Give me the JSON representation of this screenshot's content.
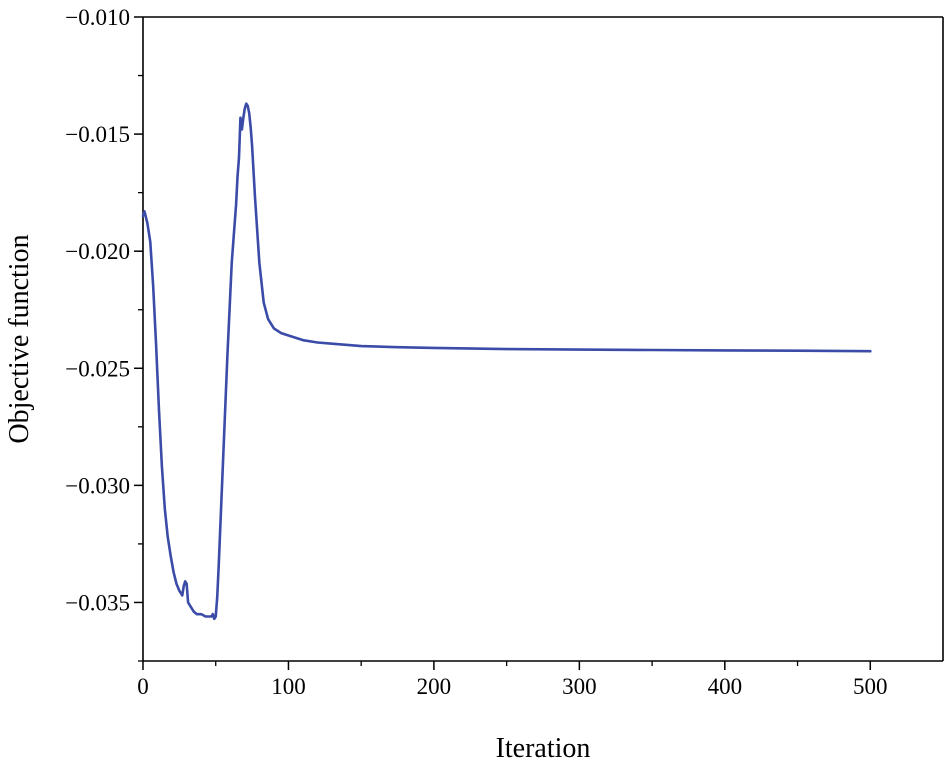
{
  "chart_data": {
    "type": "line",
    "title": "",
    "xlabel": "Iteration",
    "ylabel": "Objective function",
    "xlim": [
      0,
      550
    ],
    "ylim": [
      -0.0375,
      -0.01
    ],
    "xticks": [
      0,
      100,
      200,
      300,
      400,
      500
    ],
    "xtick_labels": [
      "0",
      "100",
      "200",
      "300",
      "400",
      "500"
    ],
    "yticks": [
      -0.035,
      -0.03,
      -0.025,
      -0.02,
      -0.015,
      -0.01
    ],
    "ytick_labels": [
      "−0.035",
      "−0.030",
      "−0.025",
      "−0.020",
      "−0.015",
      "−0.010"
    ],
    "grid": false,
    "line_color": "#3a4ca8",
    "series": [
      {
        "x": [
          0,
          1,
          3,
          5,
          7,
          9,
          11,
          13,
          15,
          17,
          19,
          21,
          23,
          25,
          27,
          28,
          29,
          30,
          31,
          32,
          33,
          35,
          37,
          40,
          43,
          45,
          47,
          48,
          49,
          50,
          51,
          52,
          53,
          55,
          58,
          61,
          64,
          65,
          66,
          67,
          68,
          69,
          70,
          71,
          72,
          73,
          74,
          75,
          77,
          80,
          83,
          86,
          90,
          95,
          100,
          110,
          120,
          130,
          150,
          175,
          200,
          250,
          300,
          350,
          400,
          450,
          500
        ],
        "y": [
          -0.0185,
          -0.0183,
          -0.0188,
          -0.0196,
          -0.0215,
          -0.024,
          -0.0268,
          -0.0292,
          -0.031,
          -0.0322,
          -0.033,
          -0.0337,
          -0.0342,
          -0.0345,
          -0.0347,
          -0.0343,
          -0.0341,
          -0.0342,
          -0.035,
          -0.0351,
          -0.0352,
          -0.0354,
          -0.0355,
          -0.0355,
          -0.0356,
          -0.0356,
          -0.0356,
          -0.0355,
          -0.0357,
          -0.0356,
          -0.0348,
          -0.0335,
          -0.032,
          -0.029,
          -0.0245,
          -0.0205,
          -0.018,
          -0.0168,
          -0.016,
          -0.0143,
          -0.0148,
          -0.0143,
          -0.0139,
          -0.0137,
          -0.0138,
          -0.0141,
          -0.0147,
          -0.0155,
          -0.0177,
          -0.0205,
          -0.0222,
          -0.0229,
          -0.0233,
          -0.0235,
          -0.0236,
          -0.0238,
          -0.0239,
          -0.02395,
          -0.02405,
          -0.0241,
          -0.02413,
          -0.02418,
          -0.0242,
          -0.02422,
          -0.02424,
          -0.02425,
          -0.02427
        ]
      }
    ]
  }
}
